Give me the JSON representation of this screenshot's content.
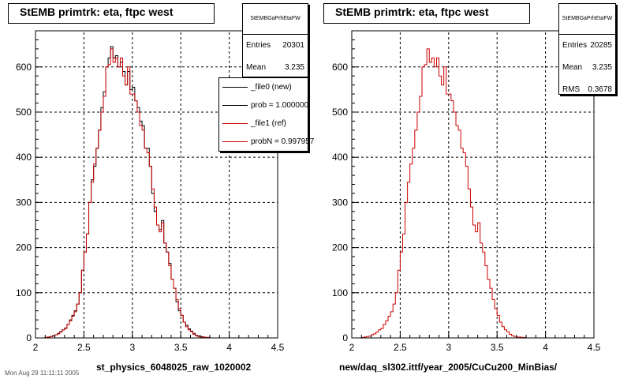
{
  "footer_text": "Mon Aug 29 11:11:11 2005",
  "panels": [
    {
      "title": "StEMB primtrk: eta, ftpc west",
      "stats": {
        "name": "StEMBGaPrhEtaFW",
        "rows": [
          {
            "label": "Entries",
            "value": "20301"
          },
          {
            "label": "Mean",
            "value": "3.235"
          }
        ]
      },
      "legend": [
        {
          "text": "_file0 (new)",
          "color": "#000000"
        },
        {
          "text": "prob = 1.000000",
          "color": "#000000"
        },
        {
          "text": "_file1 (ref)",
          "color": "#cc0000"
        },
        {
          "text": "probN = 0.997957",
          "color": "#cc0000"
        }
      ],
      "xlabel": "st_physics_6048025_raw_1020002"
    },
    {
      "title": "StEMB primtrk: eta, ftpc west",
      "stats": {
        "name": "StEMBGaPrhEtaFW",
        "rows": [
          {
            "label": "Entries",
            "value": "20285"
          },
          {
            "label": "Mean",
            "value": "3.235"
          },
          {
            "label": "RMS",
            "value": "0.3678"
          }
        ]
      },
      "legend": [],
      "xlabel": "new/daq_sl302.ittf/year_2005/CuCu200_MinBias/"
    }
  ],
  "chart_data": [
    {
      "type": "histogram",
      "title": "StEMB primtrk: eta, ftpc west",
      "xlabel": "st_physics_6048025_raw_1020002",
      "xlim": [
        2,
        4.5
      ],
      "ylim": [
        0,
        680
      ],
      "xticks": [
        2,
        2.5,
        3,
        3.5,
        4,
        4.5
      ],
      "yticks": [
        0,
        100,
        200,
        300,
        400,
        500,
        600
      ],
      "grid": true,
      "bin_start": 2.0,
      "bin_width": 0.025,
      "series": [
        {
          "name": "_file0 (new)",
          "color": "#000000",
          "values": [
            0,
            0,
            0,
            0,
            1,
            2,
            3,
            5,
            7,
            10,
            14,
            18,
            22,
            30,
            40,
            50,
            60,
            75,
            100,
            150,
            190,
            230,
            300,
            350,
            380,
            420,
            460,
            510,
            545,
            600,
            620,
            645,
            620,
            625,
            600,
            610,
            590,
            560,
            590,
            550,
            555,
            525,
            510,
            480,
            470,
            420,
            420,
            380,
            320,
            280,
            250,
            240,
            260,
            210,
            190,
            165,
            130,
            110,
            80,
            60,
            50,
            35,
            28,
            20,
            15,
            10,
            6,
            4,
            3,
            2,
            1,
            1,
            0,
            0,
            0,
            0,
            0,
            0,
            0,
            0,
            0,
            0,
            0,
            0,
            0,
            0,
            0,
            0,
            0,
            0,
            0,
            0,
            0,
            0,
            0,
            0,
            0,
            0,
            0,
            0
          ]
        },
        {
          "name": "_file1 (ref)",
          "color": "#cc0000",
          "values": [
            0,
            0,
            0,
            0,
            1,
            2,
            3,
            4,
            7,
            9,
            13,
            18,
            21,
            30,
            38,
            48,
            58,
            75,
            100,
            150,
            190,
            230,
            300,
            345,
            385,
            420,
            460,
            500,
            535,
            600,
            605,
            640,
            610,
            620,
            600,
            620,
            580,
            560,
            600,
            540,
            540,
            525,
            500,
            470,
            460,
            420,
            410,
            380,
            330,
            290,
            250,
            235,
            255,
            210,
            190,
            160,
            130,
            110,
            85,
            65,
            50,
            35,
            25,
            18,
            14,
            8,
            5,
            3,
            2,
            2,
            1,
            1,
            0,
            0,
            0,
            0,
            0,
            0,
            0,
            0,
            0,
            0,
            0,
            0,
            0,
            0,
            0,
            0,
            0,
            0,
            0,
            0,
            0,
            0,
            0,
            0,
            0,
            0,
            0,
            0
          ]
        }
      ]
    },
    {
      "type": "histogram",
      "title": "StEMB primtrk: eta, ftpc west",
      "xlabel": "new/daq_sl302.ittf/year_2005/CuCu200_MinBias/",
      "xlim": [
        2,
        4.5
      ],
      "ylim": [
        0,
        680
      ],
      "xticks": [
        2,
        2.5,
        3,
        3.5,
        4,
        4.5
      ],
      "yticks": [
        0,
        100,
        200,
        300,
        400,
        500,
        600
      ],
      "grid": true,
      "bin_start": 2.0,
      "bin_width": 0.025,
      "series": [
        {
          "name": "",
          "color": "#cc0000",
          "values": [
            0,
            0,
            0,
            0,
            1,
            2,
            3,
            4,
            7,
            9,
            13,
            18,
            21,
            30,
            38,
            48,
            58,
            75,
            100,
            150,
            190,
            230,
            300,
            345,
            385,
            420,
            460,
            500,
            535,
            600,
            605,
            640,
            610,
            620,
            600,
            620,
            580,
            560,
            600,
            540,
            540,
            525,
            500,
            470,
            460,
            420,
            410,
            380,
            330,
            290,
            250,
            235,
            255,
            210,
            190,
            160,
            130,
            110,
            85,
            65,
            50,
            35,
            25,
            18,
            14,
            8,
            5,
            3,
            2,
            2,
            1,
            1,
            0,
            0,
            0,
            0,
            0,
            0,
            0,
            0,
            0,
            0,
            0,
            0,
            0,
            0,
            0,
            0,
            0,
            0,
            0,
            0,
            0,
            0,
            0,
            0,
            0,
            0,
            0,
            0
          ]
        }
      ]
    }
  ]
}
